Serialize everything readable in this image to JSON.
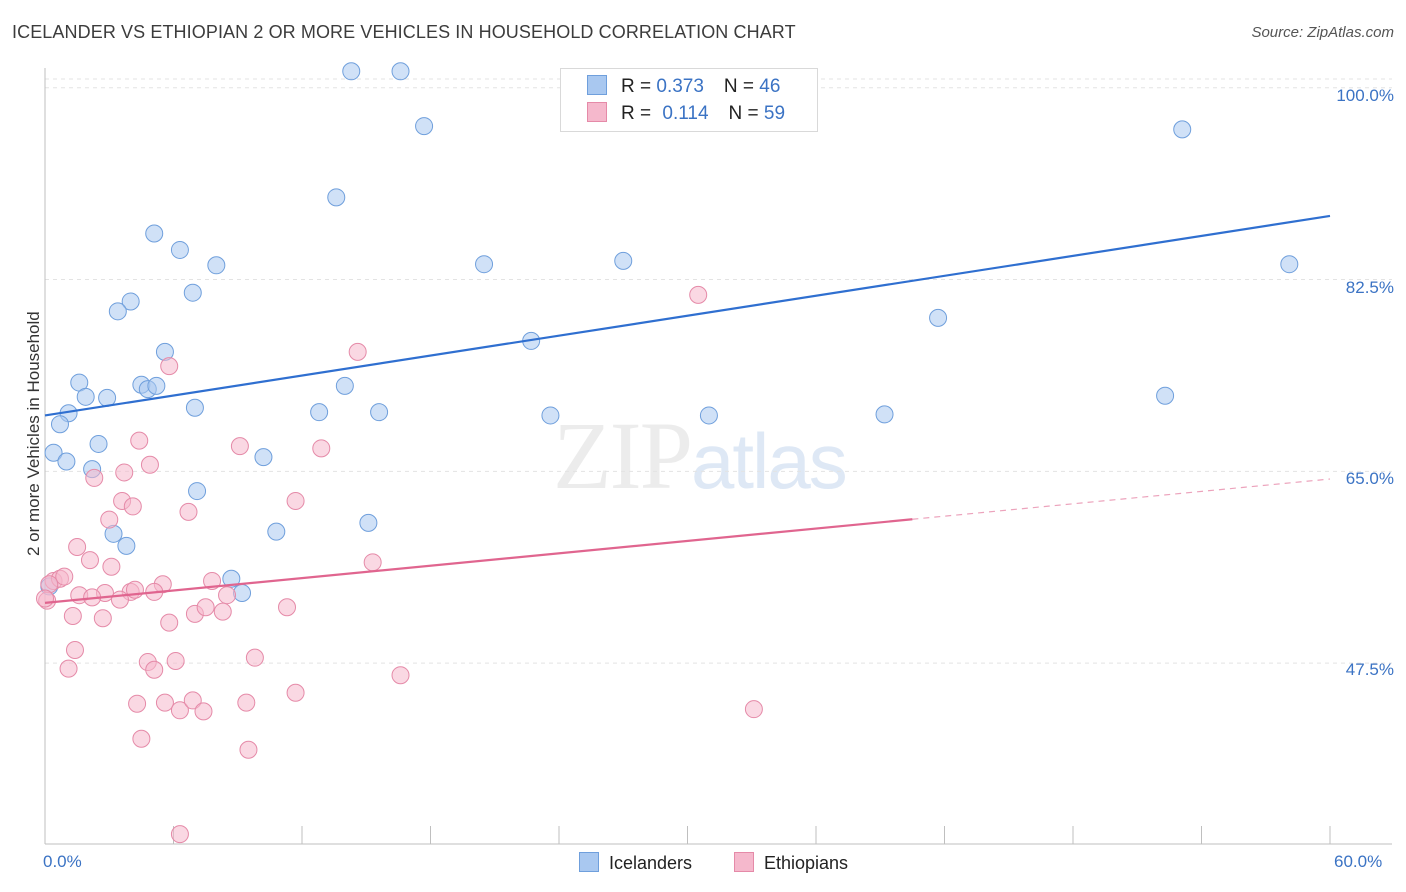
{
  "title": "ICELANDER VS ETHIOPIAN 2 OR MORE VEHICLES IN HOUSEHOLD CORRELATION CHART",
  "source": "Source: ZipAtlas.com",
  "watermark": {
    "zip": "ZIP",
    "atlas": "atlas"
  },
  "legend": {
    "rows": [
      {
        "r_label": "R = ",
        "r_value": "0.373",
        "n_label": "N = ",
        "n_value": "46",
        "color": "#a9c8f0"
      },
      {
        "r_label": "R = ",
        "r_value": "0.114",
        "n_label": "N = ",
        "n_value": "59",
        "color": "#f5b8cc"
      }
    ]
  },
  "bottom_legend": [
    {
      "label": "Icelanders",
      "color": "#a9c8f0"
    },
    {
      "label": "Ethiopians",
      "color": "#f5b8cc"
    }
  ],
  "chart_data": {
    "type": "scatter",
    "title": "ICELANDER VS ETHIOPIAN 2 OR MORE VEHICLES IN HOUSEHOLD CORRELATION CHART",
    "xlabel": "",
    "ylabel": "2 or more Vehicles in Household",
    "xlim": [
      0,
      60
    ],
    "ylim": [
      31,
      101.8
    ],
    "x_tick_labels": [
      "0.0%",
      "60.0%"
    ],
    "y_tick_labels": [
      "100.0%",
      "82.5%",
      "65.0%",
      "47.5%"
    ],
    "y_ticks": [
      100,
      82.5,
      65,
      47.5
    ],
    "grid": true,
    "series": [
      {
        "name": "Icelanders",
        "color": "#a9c8f0",
        "stroke": "#6f9fdc",
        "trend": {
          "x": [
            0,
            60
          ],
          "y": [
            70.1,
            88.3
          ],
          "solid_to": 60,
          "color": "#2f6fd0"
        },
        "points": [
          [
            14.3,
            101.5
          ],
          [
            16.6,
            101.5
          ],
          [
            17.7,
            96.5
          ],
          [
            53.1,
            96.2
          ],
          [
            13.6,
            90.0
          ],
          [
            5.1,
            86.7
          ],
          [
            6.3,
            85.2
          ],
          [
            8.0,
            83.8
          ],
          [
            20.5,
            83.9
          ],
          [
            27.0,
            84.2
          ],
          [
            58.1,
            83.9
          ],
          [
            6.9,
            81.3
          ],
          [
            4.0,
            80.5
          ],
          [
            3.4,
            79.6
          ],
          [
            41.7,
            79.0
          ],
          [
            22.7,
            76.9
          ],
          [
            5.6,
            75.9
          ],
          [
            14.0,
            72.8
          ],
          [
            1.6,
            73.1
          ],
          [
            4.5,
            72.9
          ],
          [
            4.8,
            72.5
          ],
          [
            5.2,
            72.8
          ],
          [
            1.9,
            71.8
          ],
          [
            2.9,
            71.7
          ],
          [
            7.0,
            70.8
          ],
          [
            1.1,
            70.3
          ],
          [
            0.7,
            69.3
          ],
          [
            12.8,
            70.4
          ],
          [
            15.6,
            70.4
          ],
          [
            23.6,
            70.1
          ],
          [
            31.0,
            70.1
          ],
          [
            39.2,
            70.2
          ],
          [
            52.3,
            71.9
          ],
          [
            2.5,
            67.5
          ],
          [
            0.4,
            66.7
          ],
          [
            1.0,
            65.9
          ],
          [
            2.2,
            65.2
          ],
          [
            10.2,
            66.3
          ],
          [
            7.1,
            63.2
          ],
          [
            15.1,
            60.3
          ],
          [
            3.2,
            59.3
          ],
          [
            10.8,
            59.5
          ],
          [
            3.8,
            58.2
          ],
          [
            8.7,
            55.2
          ],
          [
            9.2,
            53.9
          ],
          [
            0.2,
            54.5
          ]
        ]
      },
      {
        "name": "Ethiopians",
        "color": "#f5b8cc",
        "stroke": "#e58aa8",
        "trend": {
          "x": [
            0,
            60
          ],
          "y": [
            53.0,
            64.3
          ],
          "solid_to": 40.5,
          "color": "#e0658f"
        },
        "points": [
          [
            30.5,
            81.1
          ],
          [
            14.6,
            75.9
          ],
          [
            5.8,
            74.6
          ],
          [
            4.4,
            67.8
          ],
          [
            9.1,
            67.3
          ],
          [
            12.9,
            67.1
          ],
          [
            4.9,
            65.6
          ],
          [
            3.7,
            64.9
          ],
          [
            2.3,
            64.4
          ],
          [
            11.7,
            62.3
          ],
          [
            3.6,
            62.3
          ],
          [
            4.1,
            61.8
          ],
          [
            6.7,
            61.3
          ],
          [
            3.0,
            60.6
          ],
          [
            1.5,
            58.1
          ],
          [
            2.1,
            56.9
          ],
          [
            3.1,
            56.3
          ],
          [
            15.3,
            56.7
          ],
          [
            0.4,
            55.0
          ],
          [
            0.7,
            55.2
          ],
          [
            0.9,
            55.4
          ],
          [
            0.2,
            54.7
          ],
          [
            5.5,
            54.7
          ],
          [
            7.8,
            55.0
          ],
          [
            4.0,
            54.0
          ],
          [
            4.2,
            54.2
          ],
          [
            2.8,
            53.9
          ],
          [
            1.6,
            53.7
          ],
          [
            2.2,
            53.5
          ],
          [
            3.5,
            53.3
          ],
          [
            5.1,
            54.0
          ],
          [
            8.5,
            53.7
          ],
          [
            0.1,
            53.2
          ],
          [
            7.0,
            52.0
          ],
          [
            7.5,
            52.6
          ],
          [
            8.3,
            52.2
          ],
          [
            11.3,
            52.6
          ],
          [
            1.3,
            51.8
          ],
          [
            2.7,
            51.6
          ],
          [
            5.8,
            51.2
          ],
          [
            1.4,
            48.7
          ],
          [
            4.8,
            47.6
          ],
          [
            6.1,
            47.7
          ],
          [
            9.8,
            48.0
          ],
          [
            5.1,
            46.9
          ],
          [
            1.1,
            47.0
          ],
          [
            16.6,
            46.4
          ],
          [
            11.7,
            44.8
          ],
          [
            4.3,
            43.8
          ],
          [
            5.6,
            43.9
          ],
          [
            6.3,
            43.2
          ],
          [
            6.9,
            44.1
          ],
          [
            7.4,
            43.1
          ],
          [
            9.4,
            43.9
          ],
          [
            33.1,
            43.3
          ],
          [
            4.5,
            40.6
          ],
          [
            9.5,
            39.6
          ],
          [
            6.3,
            31.9
          ],
          [
            0.0,
            53.4
          ]
        ]
      }
    ]
  }
}
